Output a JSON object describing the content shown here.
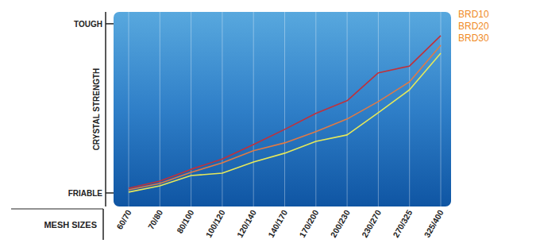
{
  "chart_data": {
    "type": "line",
    "y_label": "CRYSTAL STRENGTH",
    "x_label": "MESH SIZES",
    "categories": [
      "60/70",
      "70/80",
      "80/100",
      "100/120",
      "120/140",
      "140/170",
      "170/200",
      "200/230",
      "230/270",
      "270/325",
      "325/400"
    ],
    "series": [
      {
        "name": "BRD10",
        "color": "#c0313a",
        "values": [
          2.8,
          7,
          14,
          20,
          28.6,
          37.6,
          47,
          54.5,
          71,
          75,
          93
        ]
      },
      {
        "name": "BRD20",
        "color": "#e07a45",
        "values": [
          1.9,
          5.6,
          12.2,
          17.8,
          25,
          29.6,
          36.2,
          43.7,
          54,
          65.7,
          87.3
        ]
      },
      {
        "name": "BRD30",
        "color": "#e6e85a",
        "values": [
          0.5,
          4.2,
          10.3,
          11.7,
          18.3,
          23.5,
          30.5,
          34.3,
          47.4,
          61,
          82.6
        ]
      }
    ],
    "ylim": [
      -8,
      107
    ],
    "yticks": [
      {
        "value": 0,
        "label": "FRIABLE"
      },
      {
        "value": 100,
        "label": "TOUGH"
      }
    ],
    "grid": true,
    "legend": "top-right"
  }
}
